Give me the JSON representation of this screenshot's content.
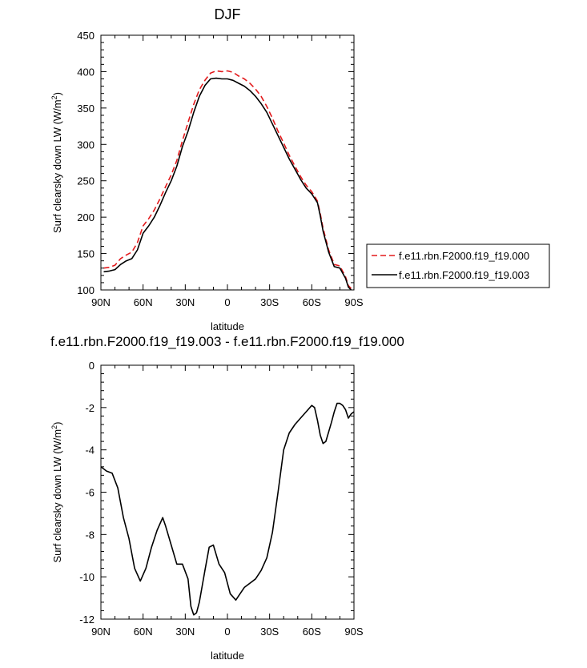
{
  "chart_data": [
    {
      "type": "line",
      "title": "DJF",
      "xlabel": "latitude",
      "ylabel": "Surf clearsky down LW (W/m",
      "ylabel_sup": "2",
      "ylabel_close": ")",
      "xlim": [
        90,
        -90
      ],
      "ylim": [
        100,
        450
      ],
      "xticks": [
        90,
        60,
        30,
        0,
        -30,
        -60,
        -90
      ],
      "xtick_labels": [
        "90N",
        "60N",
        "30N",
        "0",
        "30S",
        "60S",
        "90S"
      ],
      "yticks": [
        100,
        150,
        200,
        250,
        300,
        350,
        400,
        450
      ],
      "ytick_labels": [
        "100",
        "150",
        "200",
        "250",
        "300",
        "350",
        "400",
        "450"
      ],
      "legend_position": "right",
      "series": [
        {
          "name": "f.e11.rbn.F2000.f19_f19.000",
          "color": "#e31a1c",
          "dash": "dashed",
          "x": [
            88,
            84,
            80,
            76,
            72,
            68,
            64,
            60,
            56,
            52,
            48,
            44,
            40,
            36,
            32,
            28,
            24,
            20,
            16,
            12,
            8,
            4,
            0,
            -4,
            -8,
            -12,
            -16,
            -20,
            -24,
            -28,
            -32,
            -36,
            -40,
            -44,
            -48,
            -52,
            -56,
            -60,
            -62,
            -64,
            -66,
            -68,
            -72,
            -76,
            -80,
            -84,
            -86,
            -88
          ],
          "y": [
            130,
            131,
            134,
            143,
            148,
            152,
            165,
            188,
            198,
            210,
            225,
            242,
            258,
            278,
            305,
            330,
            355,
            375,
            388,
            398,
            401,
            400,
            401,
            399,
            394,
            390,
            384,
            376,
            366,
            352,
            336,
            318,
            302,
            285,
            270,
            256,
            244,
            235,
            229,
            222,
            205,
            185,
            155,
            135,
            133,
            118,
            106,
            102
          ]
        },
        {
          "name": "f.e11.rbn.F2000.f19_f19.003",
          "color": "#000000",
          "dash": "solid",
          "x": [
            88,
            84,
            80,
            76,
            72,
            68,
            64,
            60,
            56,
            52,
            48,
            44,
            40,
            36,
            32,
            28,
            24,
            20,
            16,
            12,
            8,
            4,
            0,
            -4,
            -8,
            -12,
            -16,
            -20,
            -24,
            -28,
            -32,
            -36,
            -40,
            -44,
            -48,
            -52,
            -56,
            -60,
            -62,
            -64,
            -66,
            -68,
            -72,
            -76,
            -80,
            -84,
            -86,
            -88
          ],
          "y": [
            125,
            126,
            128,
            135,
            140,
            143,
            155,
            178,
            188,
            200,
            216,
            234,
            250,
            270,
            297,
            318,
            344,
            366,
            381,
            390,
            391,
            390,
            390,
            388,
            384,
            380,
            374,
            366,
            356,
            344,
            328,
            312,
            296,
            280,
            266,
            252,
            240,
            232,
            226,
            220,
            202,
            181,
            152,
            132,
            130,
            116,
            104,
            100
          ]
        }
      ]
    },
    {
      "type": "line",
      "title": "f.e11.rbn.F2000.f19_f19.003 - f.e11.rbn.F2000.f19_f19.000",
      "xlabel": "latitude",
      "ylabel": "Surf clearsky down LW (W/m",
      "ylabel_sup": "2",
      "ylabel_close": ")",
      "xlim": [
        90,
        -90
      ],
      "ylim": [
        -12,
        0
      ],
      "xticks": [
        90,
        60,
        30,
        0,
        -30,
        -60,
        -90
      ],
      "xtick_labels": [
        "90N",
        "60N",
        "30N",
        "0",
        "30S",
        "60S",
        "90S"
      ],
      "yticks": [
        -12,
        -10,
        -8,
        -6,
        -4,
        -2,
        0
      ],
      "ytick_labels": [
        "-12",
        "-10",
        "-8",
        "-6",
        "-4",
        "-2",
        "0"
      ],
      "series": [
        {
          "color": "#000000",
          "dash": "solid",
          "x": [
            90,
            86,
            82,
            78,
            74,
            70,
            66,
            62,
            58,
            54,
            50,
            46,
            44,
            40,
            36,
            32,
            28,
            26,
            24,
            22,
            20,
            16,
            13,
            10,
            6,
            2,
            -2,
            -6,
            -8,
            -12,
            -16,
            -20,
            -24,
            -28,
            -32,
            -36,
            -40,
            -44,
            -48,
            -52,
            -56,
            -60,
            -62,
            -64,
            -66,
            -68,
            -70,
            -74,
            -76,
            -78,
            -80,
            -82,
            -84,
            -86,
            -88,
            -90
          ],
          "y": [
            -4.8,
            -5.0,
            -5.1,
            -5.8,
            -7.2,
            -8.2,
            -9.6,
            -10.2,
            -9.6,
            -8.6,
            -7.8,
            -7.2,
            -7.6,
            -8.5,
            -9.4,
            -9.4,
            -10.1,
            -11.4,
            -11.8,
            -11.7,
            -11.2,
            -9.7,
            -8.6,
            -8.5,
            -9.4,
            -9.8,
            -10.8,
            -11.1,
            -10.9,
            -10.5,
            -10.3,
            -10.1,
            -9.7,
            -9.1,
            -7.9,
            -6.0,
            -4.0,
            -3.2,
            -2.8,
            -2.5,
            -2.2,
            -1.9,
            -2.0,
            -2.6,
            -3.3,
            -3.7,
            -3.6,
            -2.7,
            -2.2,
            -1.8,
            -1.8,
            -1.9,
            -2.1,
            -2.5,
            -2.3,
            -2.2
          ]
        }
      ]
    }
  ]
}
